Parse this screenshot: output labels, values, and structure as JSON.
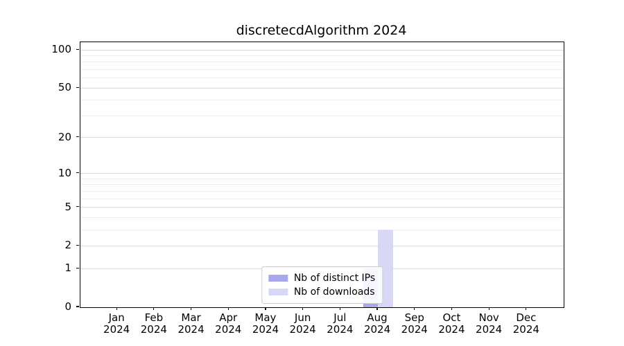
{
  "page": {
    "background_color": "#ffffff"
  },
  "chart_data": {
    "type": "bar",
    "title": "discretecdAlgorithm 2024",
    "xlabel": "",
    "ylabel": "",
    "categories": [
      "Jan",
      "Feb",
      "Mar",
      "Apr",
      "May",
      "Jun",
      "Jul",
      "Aug",
      "Sep",
      "Oct",
      "Nov",
      "Dec"
    ],
    "category_year_line": "2024",
    "series": [
      {
        "name": "Nb of distinct IPs",
        "color": "#a7a7ed",
        "values": [
          0,
          0,
          0,
          0,
          0,
          0,
          0,
          1,
          0,
          0,
          0,
          0
        ]
      },
      {
        "name": "Nb of downloads",
        "color": "#d8d8f6",
        "values": [
          0,
          0,
          0,
          0,
          0,
          0,
          0,
          3,
          0,
          0,
          0,
          0
        ]
      }
    ],
    "yscale": "log1p",
    "ylim": [
      0,
      115
    ],
    "yticks": [
      0,
      1,
      2,
      5,
      10,
      20,
      50,
      100
    ],
    "minor_yticks": [
      3,
      4,
      6,
      7,
      8,
      9,
      30,
      40,
      60,
      70,
      80,
      90
    ],
    "grid": {
      "major_color": "#d9d9d9",
      "minor_color": "#eeeeee",
      "axis": "y"
    },
    "legend": {
      "position": "lower center"
    }
  }
}
